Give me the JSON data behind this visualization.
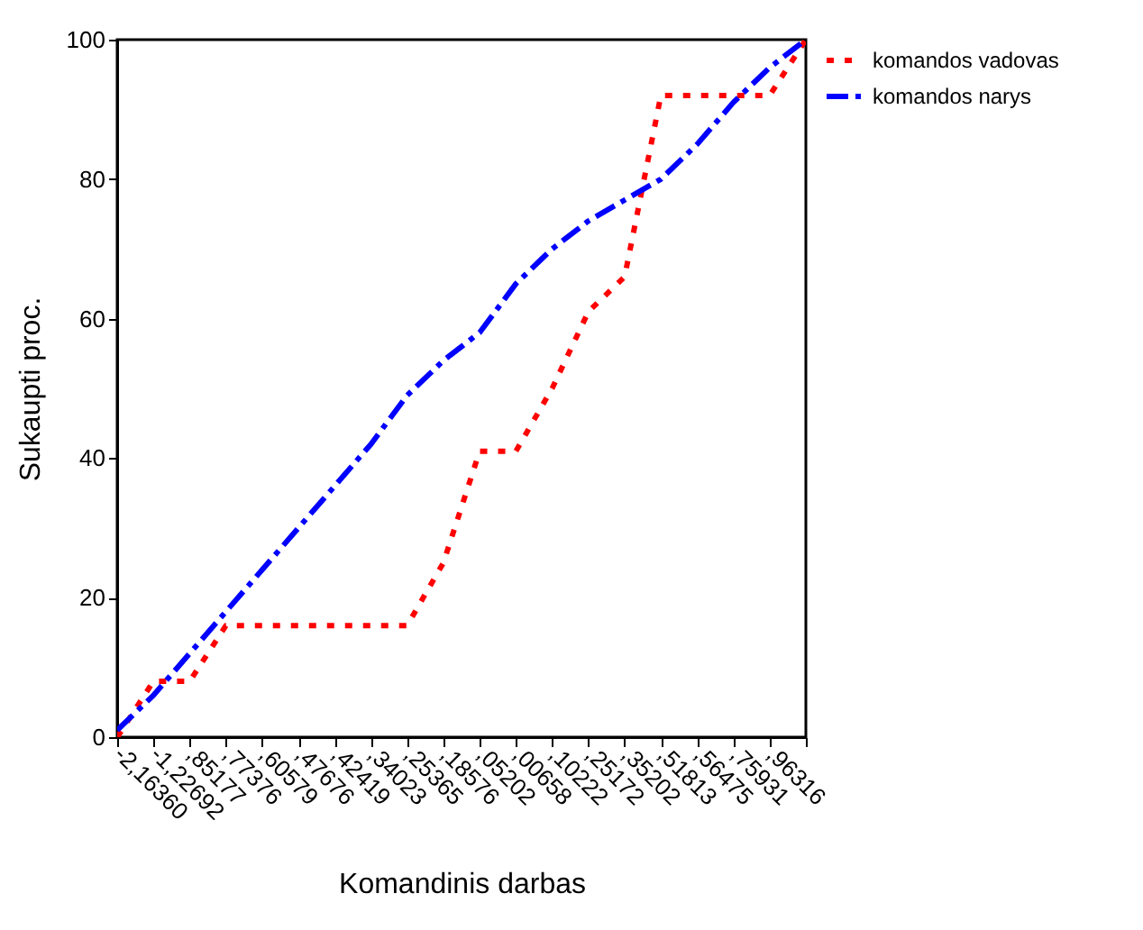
{
  "chart_data": {
    "type": "line",
    "xlabel": "Komandinis darbas",
    "ylabel": "Sukaupti proc.",
    "categories": [
      "-2,16360",
      "-1,22692",
      ",85177",
      ",77376",
      ",60579",
      ",47676",
      ",42419",
      ",34023",
      ",25365",
      ",18576",
      ",05202",
      ",00658",
      ",10222",
      ",25172",
      ",35202",
      ",51813",
      ",56475",
      ",75931",
      ",96316",
      null
    ],
    "ylim": [
      0,
      100
    ],
    "yticks": [
      0,
      20,
      40,
      60,
      80,
      100
    ],
    "grid": false,
    "legend": "right",
    "series": [
      {
        "name": "komandos vadovas",
        "color": "#ff0000",
        "line_style": "dotted",
        "values": [
          0,
          8,
          8,
          16,
          16,
          16,
          16,
          16,
          16,
          25,
          41,
          41,
          50,
          61,
          66,
          92,
          92,
          92,
          92,
          100
        ]
      },
      {
        "name": "komandos narys",
        "color": "#0000ff",
        "line_style": "dashed",
        "values": [
          1,
          6,
          12,
          18,
          24,
          30,
          36,
          42,
          49,
          54,
          58,
          65,
          70,
          74,
          77,
          80,
          85,
          91,
          96,
          100
        ]
      }
    ]
  }
}
